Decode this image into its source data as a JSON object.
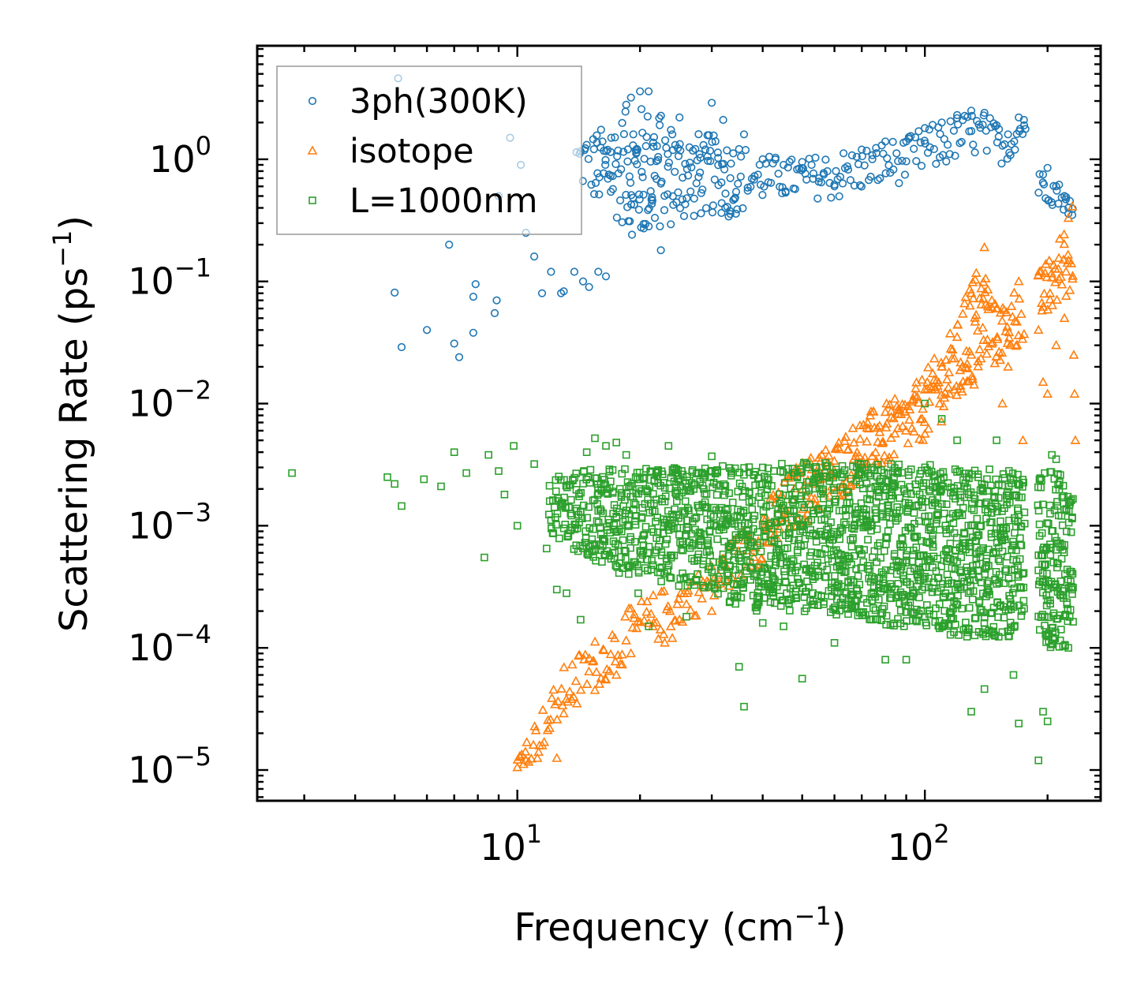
{
  "chart_data": {
    "type": "scatter",
    "title": "",
    "xlabel": "Frequency (cm",
    "xlabel_sup": "−1",
    "xlabel_suffix": ")",
    "ylabel": "Scattering Rate (ps",
    "ylabel_sup": "−1",
    "ylabel_suffix": ")",
    "xscale": "log",
    "yscale": "log",
    "xlim": [
      2.3,
      270
    ],
    "ylim": [
      5.6e-06,
      8.5
    ],
    "x_ticks": [
      {
        "base": "10",
        "exp": "1",
        "value": 10
      },
      {
        "base": "10",
        "exp": "2",
        "value": 100
      }
    ],
    "y_ticks": [
      {
        "base": "10",
        "exp": "0",
        "value": 1
      },
      {
        "base": "10",
        "exp": "−1",
        "value": 0.1
      },
      {
        "base": "10",
        "exp": "−2",
        "value": 0.01
      },
      {
        "base": "10",
        "exp": "−3",
        "value": 0.001
      },
      {
        "base": "10",
        "exp": "−4",
        "value": 0.0001
      },
      {
        "base": "10",
        "exp": "−5",
        "value": 1e-05
      }
    ],
    "legend_position": "top-left",
    "series": [
      {
        "name": "3ph(300K)",
        "marker": "circle",
        "color": "#1f77b4",
        "points": [
          [
            5.1,
            4.6
          ],
          [
            5.0,
            0.081
          ],
          [
            5.2,
            0.029
          ],
          [
            6.0,
            0.04
          ],
          [
            6.8,
            0.2
          ],
          [
            7.2,
            0.024
          ],
          [
            7.0,
            0.031
          ],
          [
            7.8,
            0.038
          ],
          [
            7.8,
            0.075
          ],
          [
            7.9,
            0.095
          ],
          [
            8.8,
            0.055
          ],
          [
            8.9,
            0.07
          ],
          [
            9.0,
            0.5
          ],
          [
            9.6,
            1.5
          ],
          [
            10.2,
            0.9
          ],
          [
            10.5,
            0.25
          ],
          [
            11.0,
            0.16
          ],
          [
            11.5,
            0.08
          ],
          [
            12.1,
            0.12
          ],
          [
            12.8,
            0.08
          ],
          [
            13.0,
            0.083
          ],
          [
            13.8,
            0.12
          ],
          [
            14.5,
            0.1
          ],
          [
            15.0,
            0.09
          ],
          [
            15.8,
            0.12
          ],
          [
            16.5,
            0.11
          ],
          [
            17.0,
            1.5
          ],
          [
            18.5,
            2.8
          ],
          [
            19.0,
            3.2
          ],
          [
            20.0,
            3.6
          ],
          [
            21.0,
            3.6
          ],
          [
            22.5,
            0.18
          ],
          [
            24.0,
            1.6
          ],
          [
            25.0,
            2.2
          ],
          [
            28.0,
            1.1
          ],
          [
            30.0,
            2.9
          ],
          [
            32.0,
            2.1
          ],
          [
            33.0,
            0.34
          ],
          [
            36.0,
            1.6
          ],
          [
            40.0,
            1.0
          ],
          [
            45.0,
            0.9
          ],
          [
            50.0,
            0.95
          ],
          [
            55.0,
            0.7
          ],
          [
            60.0,
            0.6
          ],
          [
            70.0,
            1.2
          ],
          [
            80.0,
            1.4
          ],
          [
            90.0,
            1.4
          ],
          [
            100.0,
            1.8
          ],
          [
            110.0,
            2.0
          ],
          [
            120.0,
            2.3
          ],
          [
            130.0,
            2.5
          ],
          [
            140.0,
            2.4
          ],
          [
            150.0,
            1.9
          ],
          [
            160.0,
            1.6
          ],
          [
            170.0,
            2.2
          ],
          [
            175.0,
            2.1
          ],
          [
            195.0,
            0.75
          ],
          [
            200.0,
            0.85
          ],
          [
            210.0,
            0.6
          ],
          [
            220.0,
            0.5
          ],
          [
            225.0,
            0.4
          ],
          [
            230.0,
            0.35
          ]
        ],
        "band": {
          "segments": [
            [
              [
                14,
                0.6,
                1.6
              ],
              [
                16,
                0.4,
                1.8
              ],
              [
                18,
                0.3,
                2.4
              ],
              [
                20,
                0.2,
                2.8
              ],
              [
                22,
                0.25,
                2.6
              ],
              [
                25,
                0.3,
                1.8
              ],
              [
                30,
                0.35,
                1.6
              ],
              [
                35,
                0.35,
                1.4
              ],
              [
                40,
                0.45,
                1.1
              ],
              [
                50,
                0.5,
                1.0
              ],
              [
                60,
                0.45,
                1.2
              ],
              [
                70,
                0.55,
                1.25
              ],
              [
                80,
                0.6,
                1.45
              ],
              [
                90,
                0.65,
                1.5
              ],
              [
                100,
                0.75,
                1.9
              ],
              [
                110,
                0.85,
                2.0
              ],
              [
                120,
                1.0,
                2.3
              ],
              [
                130,
                1.1,
                2.5
              ],
              [
                140,
                1.0,
                2.4
              ],
              [
                150,
                0.9,
                2.0
              ],
              [
                160,
                0.95,
                1.7
              ],
              [
                170,
                1.3,
                2.2
              ],
              [
                177,
                1.6,
                2.2
              ]
            ],
            [
              [
                190,
                0.45,
                0.8
              ],
              [
                200,
                0.45,
                0.85
              ],
              [
                210,
                0.4,
                0.7
              ],
              [
                220,
                0.38,
                0.6
              ],
              [
                230,
                0.33,
                0.45
              ]
            ]
          ],
          "density": 26
        }
      },
      {
        "name": "isotope",
        "marker": "triangle",
        "color": "#ff7f0e",
        "points": [
          [
            10.0,
            1.05e-05
          ],
          [
            10.5,
            1.2e-05
          ],
          [
            11.2,
            1.25e-05
          ],
          [
            12.5,
            1.25e-05
          ],
          [
            12.0,
            2.2e-05
          ],
          [
            13.0,
            2.9e-05
          ],
          [
            14.0,
            3.5e-05
          ],
          [
            15.5,
            4.5e-05
          ],
          [
            16.5,
            5.5e-05
          ],
          [
            17.5,
            6e-05
          ],
          [
            19.0,
            9e-05
          ],
          [
            21.5,
            0.00015
          ],
          [
            23.0,
            0.00011
          ],
          [
            24.0,
            0.00012
          ],
          [
            25.0,
            0.00017
          ],
          [
            30.0,
            0.0002
          ],
          [
            55.0,
            0.0036
          ],
          [
            80.0,
            0.0085
          ],
          [
            100.0,
            0.013
          ],
          [
            110.0,
            0.02
          ],
          [
            120.0,
            0.035
          ],
          [
            130.0,
            0.08
          ],
          [
            140.0,
            0.19
          ],
          [
            150.0,
            0.06
          ],
          [
            155.0,
            0.01
          ],
          [
            160.0,
            0.02
          ],
          [
            170.0,
            0.1
          ],
          [
            174.0,
            0.005
          ],
          [
            190.0,
            0.04
          ],
          [
            195.0,
            0.015
          ],
          [
            200.0,
            0.012
          ],
          [
            210.0,
            0.03
          ],
          [
            220.0,
            0.05
          ],
          [
            225.0,
            0.33
          ],
          [
            230.0,
            0.41
          ],
          [
            232.0,
            0.025
          ],
          [
            233.0,
            0.012
          ],
          [
            234.0,
            0.005
          ]
        ],
        "band": {
          "segments": [
            [
              [
                10,
                1.05e-05,
                1.3e-05
              ],
              [
                11,
                1.2e-05,
                2.5e-05
              ],
              [
                12,
                1.8e-05,
                4e-05
              ],
              [
                13,
                2.8e-05,
                7e-05
              ],
              [
                14,
                3.5e-05,
                9e-05
              ],
              [
                16,
                5e-05,
                0.00013
              ],
              [
                18,
                7e-05,
                0.00019
              ],
              [
                20,
                9e-05,
                0.00025
              ],
              [
                25,
                0.00015,
                0.00035
              ],
              [
                30,
                0.00022,
                0.0005
              ],
              [
                40,
                0.0005,
                0.0015
              ],
              [
                50,
                0.001,
                0.0035
              ],
              [
                60,
                0.0015,
                0.005
              ],
              [
                70,
                0.0025,
                0.008
              ],
              [
                80,
                0.003,
                0.01
              ],
              [
                90,
                0.004,
                0.012
              ],
              [
                100,
                0.005,
                0.018
              ],
              [
                110,
                0.007,
                0.03
              ],
              [
                120,
                0.009,
                0.045
              ],
              [
                130,
                0.012,
                0.12
              ],
              [
                140,
                0.018,
                0.15
              ],
              [
                150,
                0.02,
                0.06
              ],
              [
                160,
                0.025,
                0.08
              ],
              [
                170,
                0.03,
                0.1
              ],
              [
                175,
                0.03,
                0.04
              ]
            ],
            [
              [
                190,
                0.04,
                0.12
              ],
              [
                200,
                0.05,
                0.15
              ],
              [
                210,
                0.06,
                0.2
              ],
              [
                220,
                0.07,
                0.3
              ],
              [
                230,
                0.08,
                0.25
              ]
            ]
          ],
          "density": 32
        }
      },
      {
        "name": "L=1000nm",
        "marker": "square",
        "color": "#2ca02c",
        "points": [
          [
            2.8,
            0.0027
          ],
          [
            4.8,
            0.0025
          ],
          [
            5.0,
            0.0022
          ],
          [
            5.2,
            0.00145
          ],
          [
            5.9,
            0.0024
          ],
          [
            6.5,
            0.0021
          ],
          [
            7.0,
            0.004
          ],
          [
            7.5,
            0.0027
          ],
          [
            8.3,
            0.00055
          ],
          [
            8.5,
            0.0038
          ],
          [
            9.0,
            0.0028
          ],
          [
            9.3,
            0.0018
          ],
          [
            9.8,
            0.0045
          ],
          [
            10.0,
            0.001
          ],
          [
            11.0,
            0.0032
          ],
          [
            11.8,
            0.00065
          ],
          [
            12.5,
            0.0003
          ],
          [
            13.2,
            0.00028
          ],
          [
            14.3,
            0.00017
          ],
          [
            14.8,
            0.004
          ],
          [
            15.5,
            0.0052
          ],
          [
            16.5,
            0.0045
          ],
          [
            17.5,
            0.0048
          ],
          [
            18.5,
            0.0038
          ],
          [
            19.8,
            0.00028
          ],
          [
            21.0,
            0.00015
          ],
          [
            23.5,
            0.0045
          ],
          [
            26.0,
            0.00018
          ],
          [
            30.0,
            0.0037
          ],
          [
            35.0,
            7e-05
          ],
          [
            36.0,
            3.3e-05
          ],
          [
            40.0,
            0.00016
          ],
          [
            45.0,
            0.00015
          ],
          [
            50.0,
            5.6e-05
          ],
          [
            60.0,
            0.00011
          ],
          [
            68.0,
            0.003
          ],
          [
            80.0,
            8e-05
          ],
          [
            90.0,
            8e-05
          ],
          [
            100.0,
            0.01
          ],
          [
            110.0,
            0.0075
          ],
          [
            120.0,
            0.005
          ],
          [
            125.0,
            0.00035
          ],
          [
            130.0,
            3e-05
          ],
          [
            140.0,
            4.6e-05
          ],
          [
            150.0,
            0.005
          ],
          [
            165.0,
            6e-05
          ],
          [
            170.0,
            2.4e-05
          ],
          [
            190.0,
            1.2e-05
          ],
          [
            195.0,
            3e-05
          ],
          [
            200.0,
            2.5e-05
          ],
          [
            205.0,
            0.0038
          ],
          [
            210.0,
            0.0035
          ],
          [
            215.0,
            0.0026
          ],
          [
            225.0,
            0.0001
          ],
          [
            230.0,
            0.0003
          ]
        ],
        "band": {
          "segments": [
            [
              [
                12,
                0.0009,
                0.0025
              ],
              [
                14,
                0.0006,
                0.0028
              ],
              [
                16,
                0.0005,
                0.003
              ],
              [
                18,
                0.0004,
                0.003
              ],
              [
                20,
                0.0004,
                0.003
              ],
              [
                25,
                0.0003,
                0.003
              ],
              [
                30,
                0.0003,
                0.003
              ],
              [
                35,
                0.0002,
                0.0032
              ],
              [
                40,
                0.0002,
                0.0032
              ],
              [
                50,
                0.0002,
                0.0033
              ],
              [
                60,
                0.00018,
                0.0033
              ],
              [
                70,
                0.00018,
                0.0033
              ],
              [
                80,
                0.00015,
                0.0032
              ],
              [
                90,
                0.00015,
                0.0032
              ],
              [
                100,
                0.00015,
                0.0032
              ],
              [
                120,
                0.00012,
                0.003
              ],
              [
                140,
                0.00012,
                0.003
              ],
              [
                160,
                0.00012,
                0.003
              ],
              [
                175,
                0.00015,
                0.0025
              ]
            ],
            [
              [
                190,
                0.00015,
                0.0025
              ],
              [
                200,
                0.0001,
                0.003
              ],
              [
                210,
                0.0001,
                0.0028
              ],
              [
                220,
                0.0001,
                0.0025
              ],
              [
                230,
                0.00012,
                0.002
              ]
            ]
          ],
          "density": 60
        }
      }
    ]
  }
}
